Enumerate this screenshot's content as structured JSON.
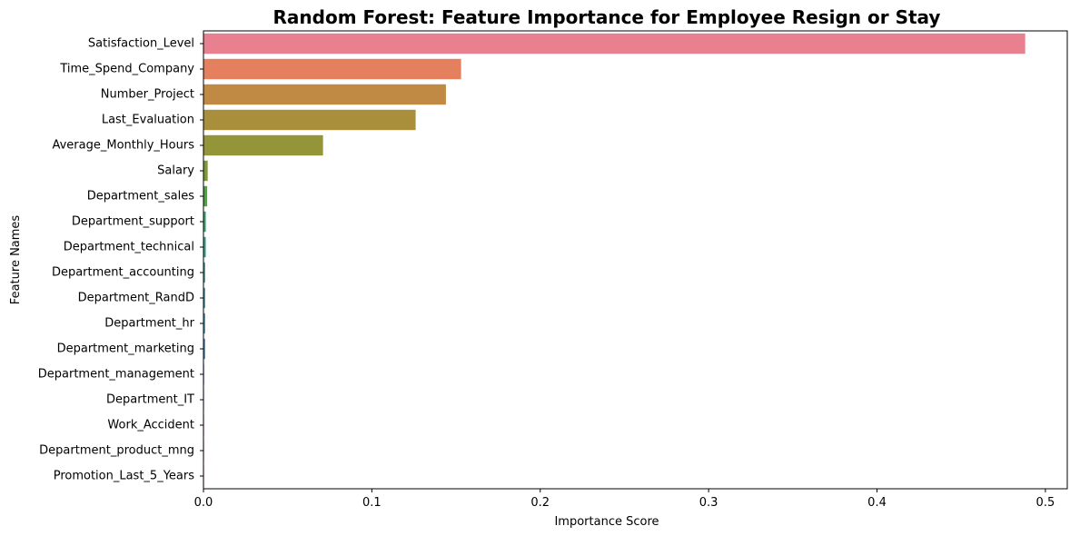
{
  "chart_data": {
    "type": "bar",
    "orientation": "horizontal",
    "title": "Random Forest: Feature Importance for Employee Resign or Stay",
    "xlabel": "Importance Score",
    "ylabel": "Feature Names",
    "xlim": [
      0,
      0.513
    ],
    "xticks": [
      0.0,
      0.1,
      0.2,
      0.3,
      0.4,
      0.5
    ],
    "xtick_labels": [
      "0.0",
      "0.1",
      "0.2",
      "0.3",
      "0.4",
      "0.5"
    ],
    "grid": false,
    "legend": "none",
    "categories": [
      "Satisfaction_Level",
      "Time_Spend_Company",
      "Number_Project",
      "Last_Evaluation",
      "Average_Monthly_Hours",
      "Salary",
      "Department_sales",
      "Department_support",
      "Department_technical",
      "Department_accounting",
      "Department_RandD",
      "Department_hr",
      "Department_marketing",
      "Department_management",
      "Department_IT",
      "Work_Accident",
      "Department_product_mng",
      "Promotion_Last_5_Years"
    ],
    "values": [
      0.488,
      0.153,
      0.144,
      0.126,
      0.071,
      0.0025,
      0.0022,
      0.0014,
      0.0014,
      0.001,
      0.001,
      0.001,
      0.001,
      0.0004,
      0.0003,
      0.0002,
      0.0002,
      0.0001
    ],
    "colors": [
      "#e8808f",
      "#e5805e",
      "#c08a45",
      "#a98f3c",
      "#949438",
      "#7a9a35",
      "#4ea53f",
      "#3ea273",
      "#3d9f8a",
      "#3c9c9a",
      "#3d98a8",
      "#3e93b6",
      "#4a89c8",
      "#7a7fd1",
      "#a474d3",
      "#c86ccd",
      "#e066b6",
      "#e8759f"
    ]
  }
}
